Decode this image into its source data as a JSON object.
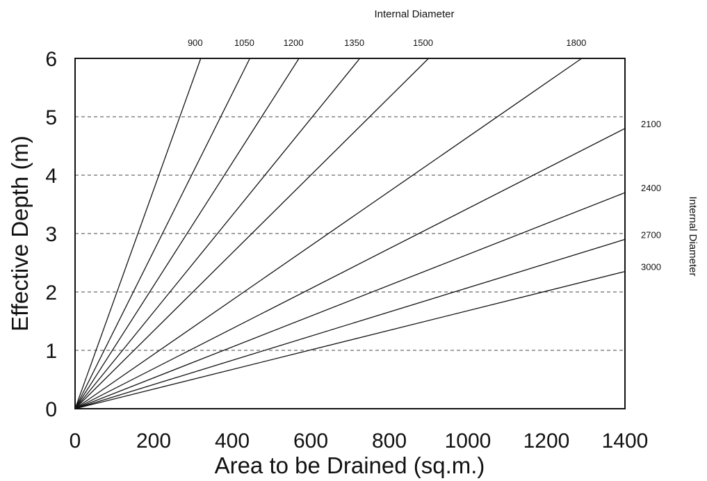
{
  "chart_data": {
    "type": "line",
    "title": "",
    "xlabel": "Area to be Drained (sq.m.)",
    "ylabel": "Effective Depth (m)",
    "top_axis_title": "Internal Diameter",
    "right_axis_title": "Internal Diameter",
    "xlim": [
      0,
      1400
    ],
    "ylim": [
      0,
      6
    ],
    "xticks": [
      0,
      200,
      400,
      600,
      800,
      1000,
      1200,
      1400
    ],
    "yticks": [
      0,
      1,
      2,
      3,
      4,
      5,
      6
    ],
    "grid": "horizontal-dashed",
    "series": [
      {
        "name": "900",
        "label_side": "top",
        "x": [
          0,
          320
        ],
        "y": [
          0,
          6
        ]
      },
      {
        "name": "1050",
        "label_side": "top",
        "x": [
          0,
          445
        ],
        "y": [
          0,
          6
        ]
      },
      {
        "name": "1200",
        "label_side": "top",
        "x": [
          0,
          570
        ],
        "y": [
          0,
          6
        ]
      },
      {
        "name": "1350",
        "label_side": "top",
        "x": [
          0,
          725
        ],
        "y": [
          0,
          6
        ]
      },
      {
        "name": "1500",
        "label_side": "top",
        "x": [
          0,
          900
        ],
        "y": [
          0,
          6
        ]
      },
      {
        "name": "1800",
        "label_side": "top",
        "x": [
          0,
          1290
        ],
        "y": [
          0,
          6
        ]
      },
      {
        "name": "2100",
        "label_side": "right",
        "x": [
          0,
          1400
        ],
        "y": [
          0,
          4.8
        ]
      },
      {
        "name": "2400",
        "label_side": "right",
        "x": [
          0,
          1400
        ],
        "y": [
          0,
          3.7
        ]
      },
      {
        "name": "2700",
        "label_side": "right",
        "x": [
          0,
          1400
        ],
        "y": [
          0,
          2.9
        ]
      },
      {
        "name": "3000",
        "label_side": "right",
        "x": [
          0,
          1400
        ],
        "y": [
          0,
          2.35
        ]
      }
    ]
  }
}
